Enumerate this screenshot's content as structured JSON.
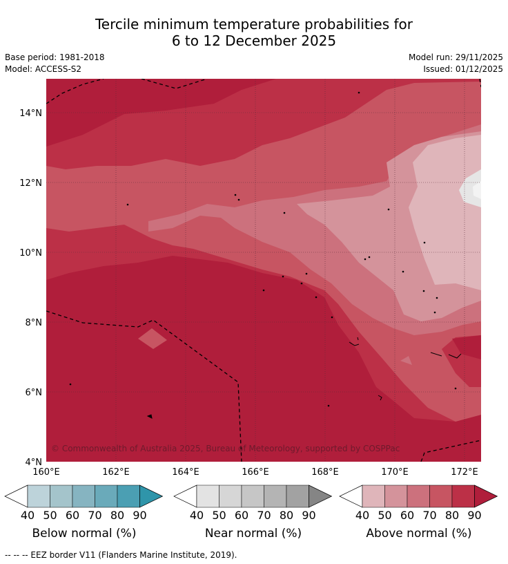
{
  "title": {
    "line1": "Tercile minimum temperature probabilities for",
    "line2": "6 to 12 December 2025"
  },
  "meta": {
    "base_period": "Base period: 1981-2018",
    "model": "Model: ACCESS-S2",
    "model_run": "Model run: 29/11/2025",
    "issued": "Issued: 01/12/2025"
  },
  "map": {
    "lat_labels": [
      "14°N",
      "12°N",
      "10°N",
      "8°N",
      "6°N",
      "4°N"
    ],
    "lon_labels": [
      "160°E",
      "162°E",
      "164°E",
      "166°E",
      "168°E",
      "170°E",
      "172°E"
    ],
    "copyright": "© Commonwealth of Australia 2025, Bureau of Meteorology, supported by COSPPac"
  },
  "colorbars": [
    {
      "name": "below",
      "title": "Below normal (%)",
      "colors": [
        "#bdd3da",
        "#a4c4cb",
        "#86b4c1",
        "#6aaaba",
        "#4b9fb3",
        "#2f95aa"
      ],
      "ticks": [
        "40",
        "50",
        "60",
        "70",
        "80",
        "90"
      ]
    },
    {
      "name": "near",
      "title": "Near normal (%)",
      "colors": [
        "#e3e3e3",
        "#d6d6d6",
        "#c6c6c6",
        "#b4b4b4",
        "#a2a2a2",
        "#858585"
      ],
      "ticks": [
        "40",
        "50",
        "60",
        "70",
        "80",
        "90"
      ]
    },
    {
      "name": "above",
      "title": "Above normal (%)",
      "colors": [
        "#dfb5ba",
        "#d4939b",
        "#cc717d",
        "#c75562",
        "#bc3047",
        "#b01e3b"
      ],
      "ticks": [
        "40",
        "50",
        "60",
        "70",
        "80",
        "90"
      ]
    }
  ],
  "footnote": "--  --  -- EEZ border V11 (Flanders Marine Institute, 2019)."
}
